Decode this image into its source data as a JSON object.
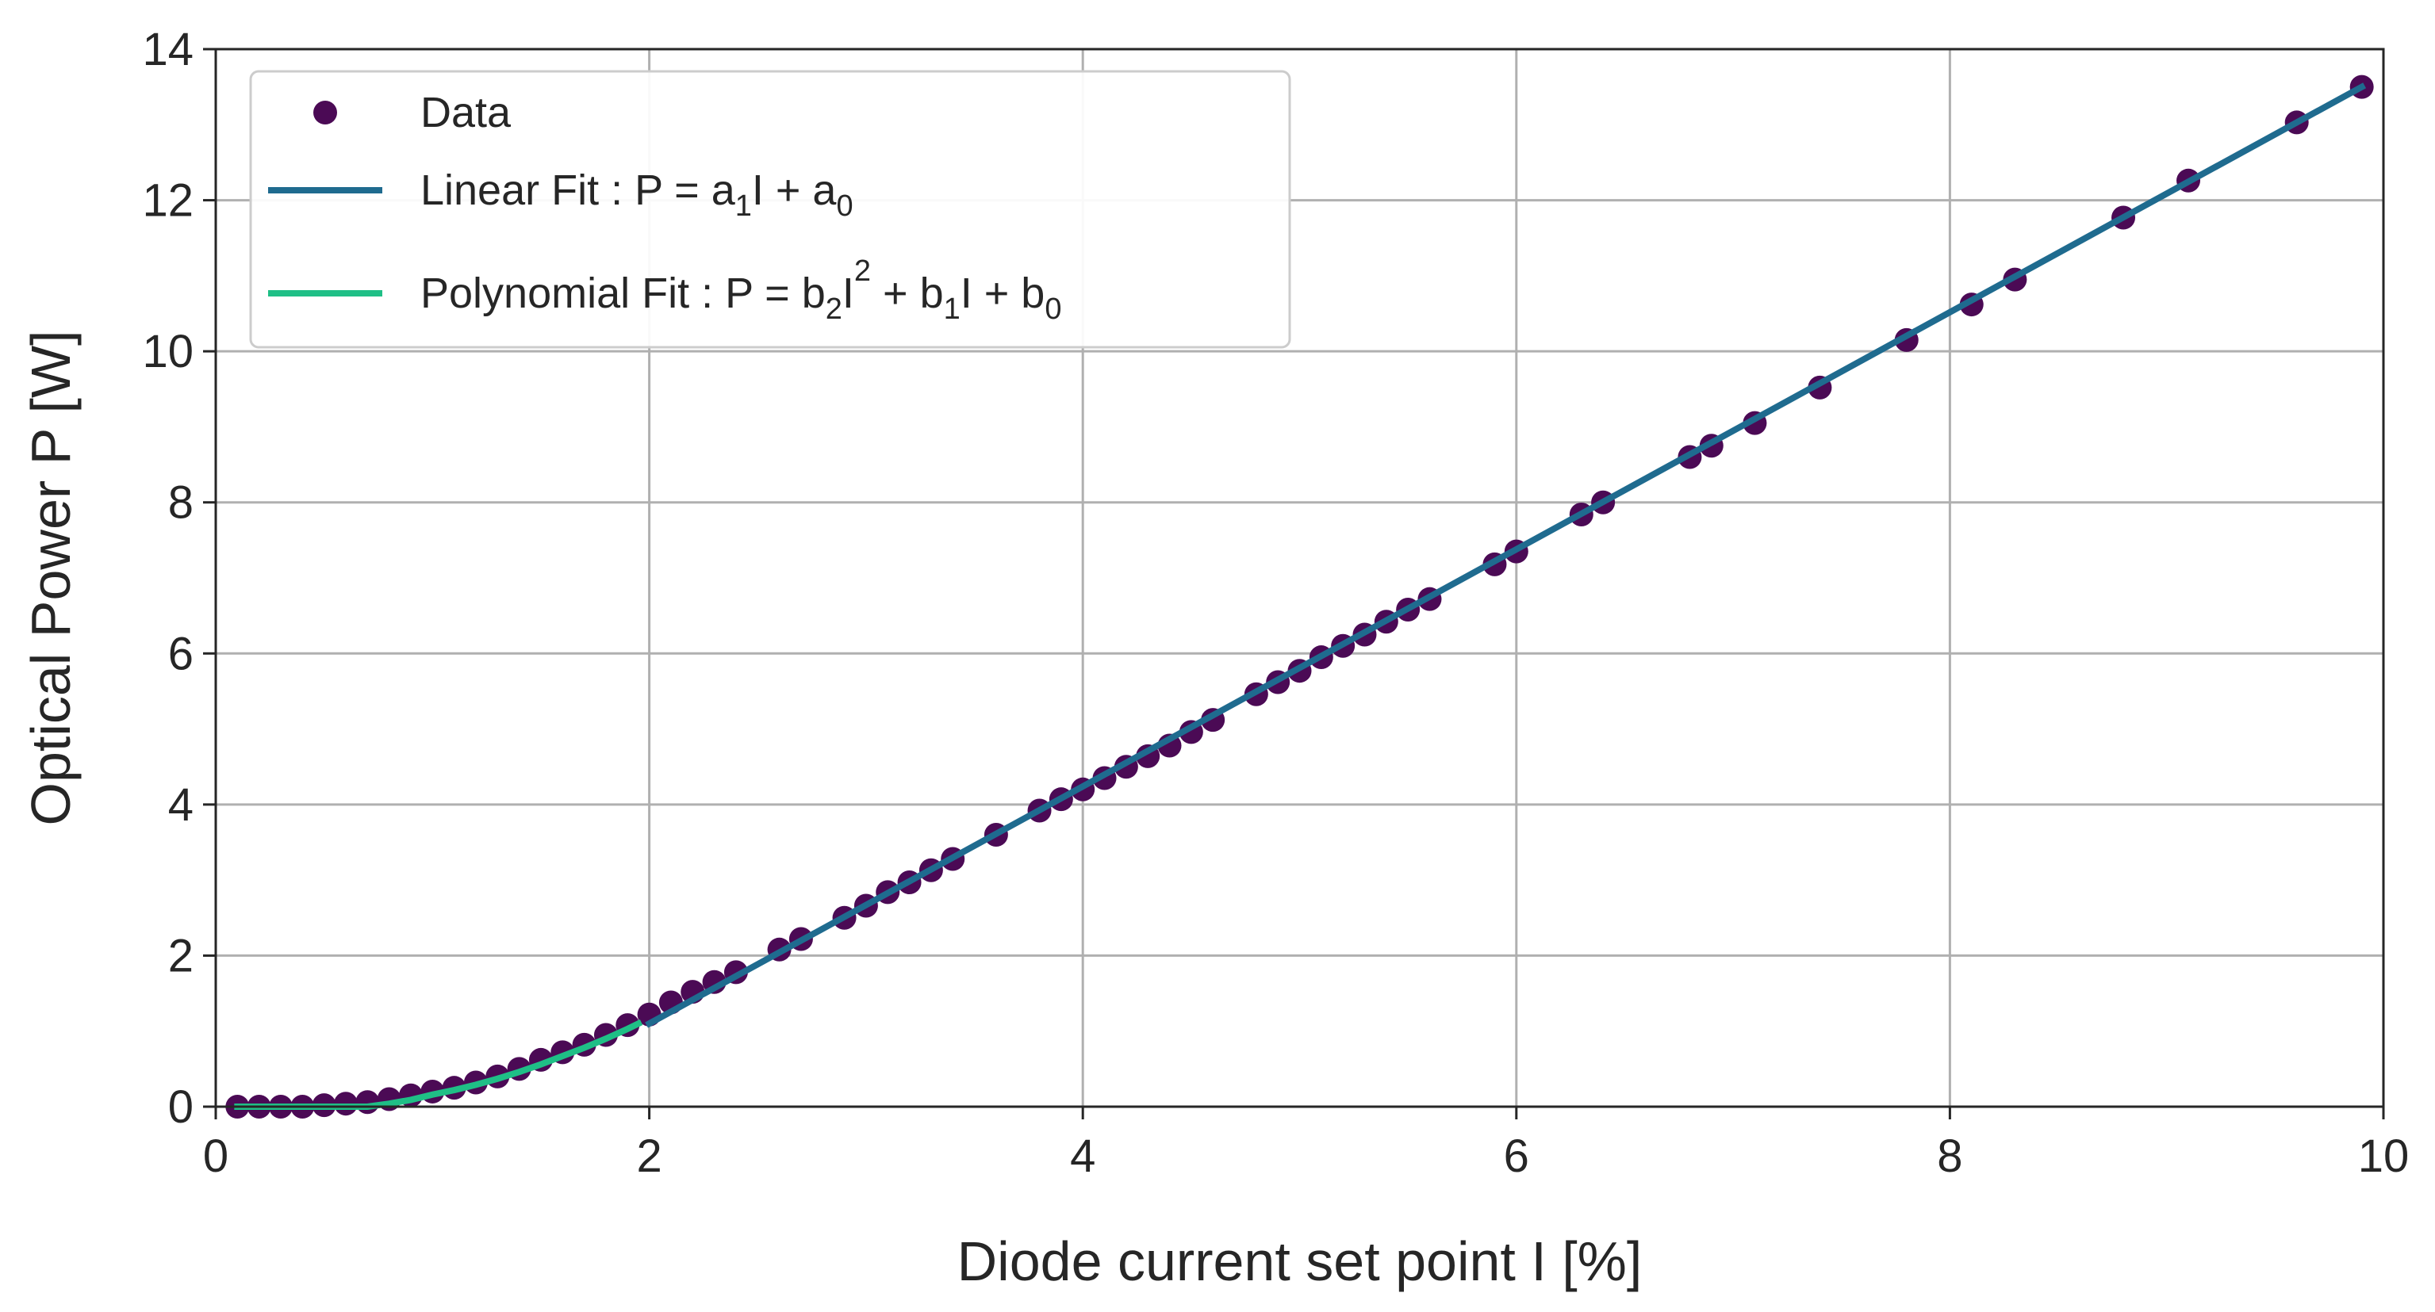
{
  "chart_data": {
    "type": "scatter",
    "title": "",
    "xlabel": "Diode current set point I [%]",
    "ylabel": "Optical Power P [W]",
    "xlim": [
      0,
      10
    ],
    "ylim": [
      0,
      14
    ],
    "xticks": [
      0,
      2,
      4,
      6,
      8,
      10
    ],
    "yticks": [
      0,
      2,
      4,
      6,
      8,
      10,
      12,
      14
    ],
    "grid": true,
    "legend_position": "top-left",
    "colors": {
      "data": "#4b0a55",
      "linear": "#1f6b8f",
      "polynomial": "#1fbf86",
      "grid": "#b0b0b0",
      "axis": "#262626"
    },
    "legend": [
      {
        "key": "data",
        "parts": [
          {
            "t": "Data"
          }
        ]
      },
      {
        "key": "linear",
        "parts": [
          {
            "t": "Linear Fit : P = a"
          },
          {
            "t": "1",
            "sub": true
          },
          {
            "t": "I + a"
          },
          {
            "t": "0",
            "sub": true
          }
        ]
      },
      {
        "key": "polynomial",
        "parts": [
          {
            "t": "Polynomial Fit : P = b"
          },
          {
            "t": "2",
            "sub": true
          },
          {
            "t": "I"
          },
          {
            "t": "2",
            "sup": true
          },
          {
            "t": " + b"
          },
          {
            "t": "1",
            "sub": true
          },
          {
            "t": "I + b"
          },
          {
            "t": "0",
            "sub": true
          }
        ]
      }
    ],
    "series": [
      {
        "name": "Data",
        "kind": "scatter",
        "x": [
          0.1,
          0.2,
          0.3,
          0.4,
          0.5,
          0.6,
          0.7,
          0.8,
          0.9,
          1.0,
          1.1,
          1.2,
          1.3,
          1.4,
          1.5,
          1.6,
          1.7,
          1.8,
          1.9,
          2.0,
          2.1,
          2.2,
          2.3,
          2.4,
          2.6,
          2.7,
          2.9,
          3.0,
          3.1,
          3.2,
          3.3,
          3.4,
          3.6,
          3.8,
          3.9,
          4.0,
          4.1,
          4.2,
          4.3,
          4.4,
          4.5,
          4.6,
          4.8,
          4.9,
          5.0,
          5.1,
          5.2,
          5.3,
          5.4,
          5.5,
          5.6,
          5.9,
          6.0,
          6.3,
          6.4,
          6.8,
          6.9,
          7.1,
          7.4,
          7.8,
          8.1,
          8.3,
          8.8,
          9.1,
          9.6,
          9.9
        ],
        "y": [
          0.0,
          0.0,
          0.0,
          0.0,
          0.02,
          0.04,
          0.06,
          0.1,
          0.15,
          0.2,
          0.25,
          0.32,
          0.4,
          0.5,
          0.62,
          0.72,
          0.82,
          0.95,
          1.08,
          1.22,
          1.38,
          1.52,
          1.65,
          1.78,
          2.08,
          2.22,
          2.5,
          2.66,
          2.84,
          2.97,
          3.13,
          3.28,
          3.6,
          3.92,
          4.07,
          4.2,
          4.35,
          4.5,
          4.64,
          4.78,
          4.96,
          5.12,
          5.46,
          5.62,
          5.77,
          5.95,
          6.1,
          6.25,
          6.42,
          6.58,
          6.72,
          7.18,
          7.35,
          7.84,
          8.0,
          8.6,
          8.75,
          9.05,
          9.52,
          10.15,
          10.62,
          10.95,
          11.77,
          12.26,
          13.03,
          13.5
        ]
      },
      {
        "name": "Linear Fit",
        "kind": "line",
        "x": [
          2.0,
          9.9
        ],
        "y": [
          1.1,
          13.5
        ]
      },
      {
        "name": "Polynomial Fit",
        "kind": "line",
        "x": [
          0.1,
          0.2,
          0.3,
          0.4,
          0.5,
          0.6,
          0.7,
          0.8,
          0.9,
          1.0,
          1.1,
          1.2,
          1.3,
          1.4,
          1.5,
          1.6,
          1.7,
          1.8,
          1.9,
          1.95
        ],
        "y": [
          0.0,
          0.0,
          0.0,
          0.0,
          0.0,
          0.0,
          0.0,
          0.04,
          0.09,
          0.16,
          0.22,
          0.29,
          0.37,
          0.46,
          0.56,
          0.67,
          0.78,
          0.9,
          1.03,
          1.1
        ]
      }
    ]
  }
}
